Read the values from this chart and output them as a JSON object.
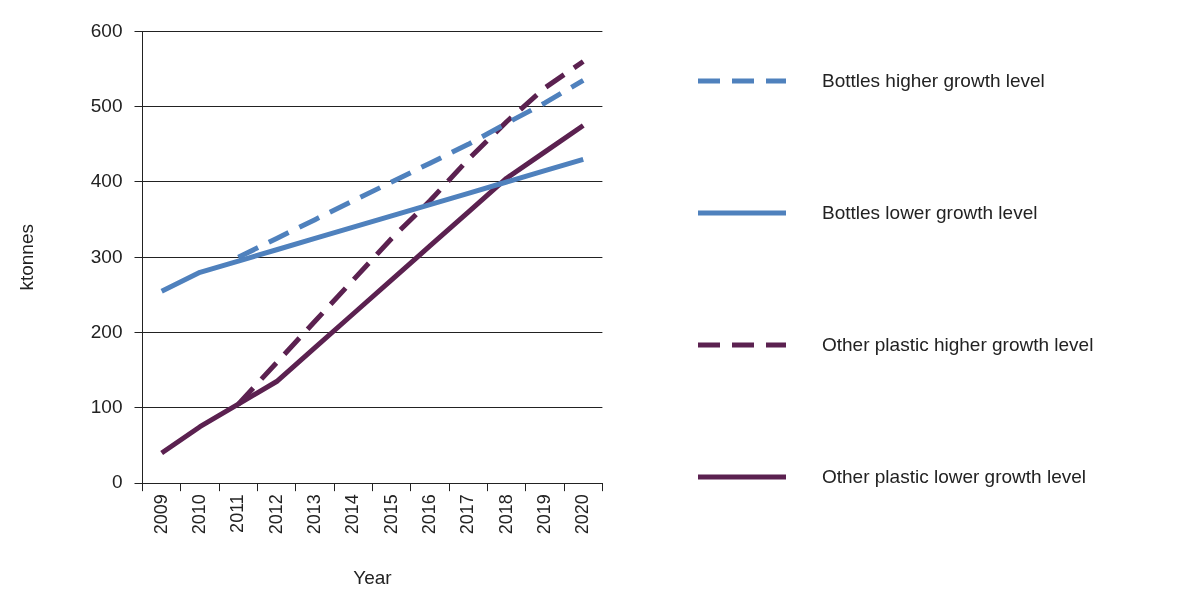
{
  "chart_data": {
    "type": "line",
    "xlabel": "Year",
    "ylabel": "ktonnes",
    "categories": [
      "2009",
      "2010",
      "2011",
      "2012",
      "2013",
      "2014",
      "2015",
      "2016",
      "2017",
      "2018",
      "2019",
      "2020"
    ],
    "ylim": [
      0,
      600
    ],
    "yticks": [
      0,
      100,
      200,
      300,
      400,
      500,
      600
    ],
    "grid": "y",
    "legend": "right",
    "marker": "none",
    "series": [
      {
        "name": "Bottles higher growth level",
        "color": "#4f81bd",
        "line_style": "dashed",
        "values": [
          null,
          null,
          300,
          325,
          350,
          375,
          400,
          425,
          450,
          478,
          505,
          535
        ]
      },
      {
        "name": "Bottles lower growth level",
        "color": "#4f81bd",
        "line_style": "solid",
        "values": [
          255,
          280,
          295,
          310,
          325,
          340,
          355,
          370,
          385,
          400,
          415,
          430
        ]
      },
      {
        "name": "Other plastic higher growth level",
        "color": "#5b2150",
        "line_style": "dashed",
        "values": [
          null,
          null,
          105,
          160,
          215,
          270,
          325,
          375,
          430,
          480,
          525,
          560
        ]
      },
      {
        "name": "Other plastic lower growth level",
        "color": "#5b2150",
        "line_style": "solid",
        "values": [
          40,
          75,
          105,
          135,
          180,
          225,
          270,
          315,
          360,
          405,
          440,
          475
        ]
      }
    ]
  }
}
